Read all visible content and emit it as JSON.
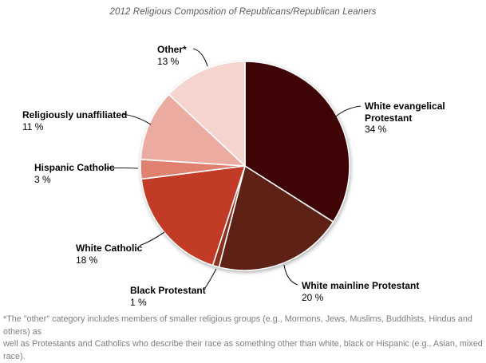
{
  "title": "2012 Religious Composition of Republicans/Republican Leaners",
  "footnote": {
    "line1": "*The \"other\" category includes members of smaller religious groups (e.g., Mormons, Jews, Muslims, Buddhists, Hindus and others) as",
    "line2": "well as Protestants and Catholics who describe their race as something other than white, black or Hispanic (e.g., Asian, mixed race)."
  },
  "chart_data": {
    "type": "pie",
    "title": "2012 Religious Composition of Republicans/Republican Leaners",
    "start_angle_deg": 0,
    "direction": "clockwise",
    "legend_position": "none",
    "units": "%",
    "slices": [
      {
        "label": "White evangelical Protestant",
        "value": 34,
        "pct_label": "34 %",
        "color": "#3F0405"
      },
      {
        "label": "White mainline Protestant",
        "value": 20,
        "pct_label": "20 %",
        "color": "#5E2116"
      },
      {
        "label": "Black Protestant",
        "value": 1,
        "pct_label": "1 %",
        "color": "#8C3120"
      },
      {
        "label": "White Catholic",
        "value": 18,
        "pct_label": "18 %",
        "color": "#C23B27"
      },
      {
        "label": "Hispanic Catholic",
        "value": 3,
        "pct_label": "3 %",
        "color": "#E0806F"
      },
      {
        "label": "Religiously unaffiliated",
        "value": 11,
        "pct_label": "11 %",
        "color": "#ECABA1"
      },
      {
        "label": "Other*",
        "value": 13,
        "pct_label": "13 %",
        "color": "#F5D4CE"
      }
    ]
  }
}
